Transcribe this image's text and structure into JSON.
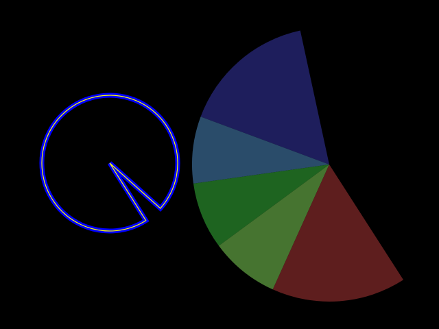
{
  "background": "#000000",
  "outline_shape": {
    "stroke_outer": "#0000ff",
    "stroke_inner": "#ffff00",
    "missing_wedge_degrees": [
      41.8,
      57.8
    ]
  },
  "pie": {
    "slices": [
      {
        "start_deg": 200.4,
        "end_deg": 257.8,
        "color": "#1e1e5c"
      },
      {
        "start_deg": 172.0,
        "end_deg": 200.4,
        "color": "#2a4c6a"
      },
      {
        "start_deg": 143.6,
        "end_deg": 172.0,
        "color": "#1e6420"
      },
      {
        "start_deg": 114.3,
        "end_deg": 143.6,
        "color": "#467430"
      },
      {
        "start_deg": 57.3,
        "end_deg": 114.3,
        "color": "#5e1e1e"
      }
    ]
  }
}
